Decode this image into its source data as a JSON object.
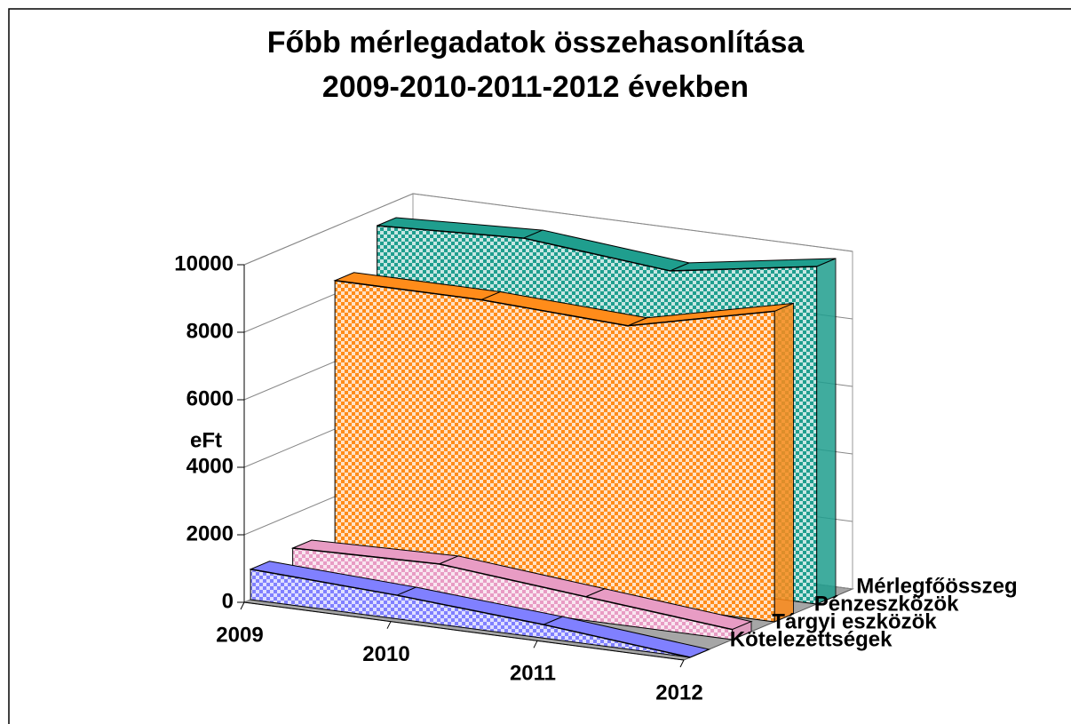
{
  "chart_data": {
    "type": "ribbon3d",
    "title_lines": [
      "Főbb mérlegadatok összehasonlítása",
      "2009-2010-2011-2012 években"
    ],
    "y_label": "eFt",
    "categories": [
      "2009",
      "2010",
      "2011",
      "2012"
    ],
    "series": [
      {
        "name": "Kötelezettségek",
        "color": "#8080ff",
        "values": [
          900,
          700,
          400,
          0
        ]
      },
      {
        "name": "Tárgyi eszközök",
        "color": "#e89cc4",
        "values": [
          1000,
          1100,
          700,
          300
        ]
      },
      {
        "name": "Pénzeszközök",
        "color": "#ff8c1a",
        "values": [
          8400,
          8400,
          8200,
          9200
        ]
      },
      {
        "name": "Mérlegfőösszeg",
        "color": "#1f9e8e",
        "values": [
          9500,
          9700,
          9300,
          10000
        ]
      }
    ],
    "ylim": [
      0,
      10000
    ],
    "yticks": [
      0,
      2000,
      4000,
      6000,
      8000,
      10000
    ],
    "grid": true
  }
}
